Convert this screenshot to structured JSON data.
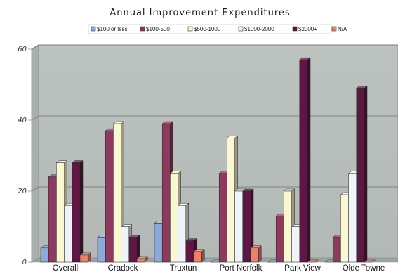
{
  "chart_data": {
    "type": "bar",
    "title": "Annual Improvement Expenditures",
    "categories": [
      "Overall",
      "Cradock",
      "Truxtun",
      "Port Norfolk",
      "Park View",
      "Olde Towne"
    ],
    "series": [
      {
        "name": "$100 or less",
        "color": "#8fa9d6",
        "values": [
          4,
          7,
          11,
          0,
          0,
          0
        ]
      },
      {
        "name": "$100-500",
        "color": "#8c3a5e",
        "values": [
          24,
          37,
          39,
          25,
          13,
          7
        ]
      },
      {
        "name": "$500-1000",
        "color": "#fbf7d2",
        "values": [
          28,
          39,
          25,
          35,
          20,
          19
        ]
      },
      {
        "name": "$1000-2000",
        "color": "#eef4f8",
        "values": [
          16,
          10,
          16,
          20,
          10,
          25
        ]
      },
      {
        "name": "$2000+",
        "color": "#5e1742",
        "values": [
          28,
          7,
          6,
          20,
          57,
          49
        ]
      },
      {
        "name": "N/A",
        "color": "#e8826b",
        "values": [
          2,
          1,
          3,
          4,
          0,
          0
        ]
      }
    ],
    "ylim": [
      0,
      60
    ],
    "yticks": [
      "0",
      "20",
      "40",
      "60"
    ],
    "grid": true,
    "legend": "top-center"
  }
}
